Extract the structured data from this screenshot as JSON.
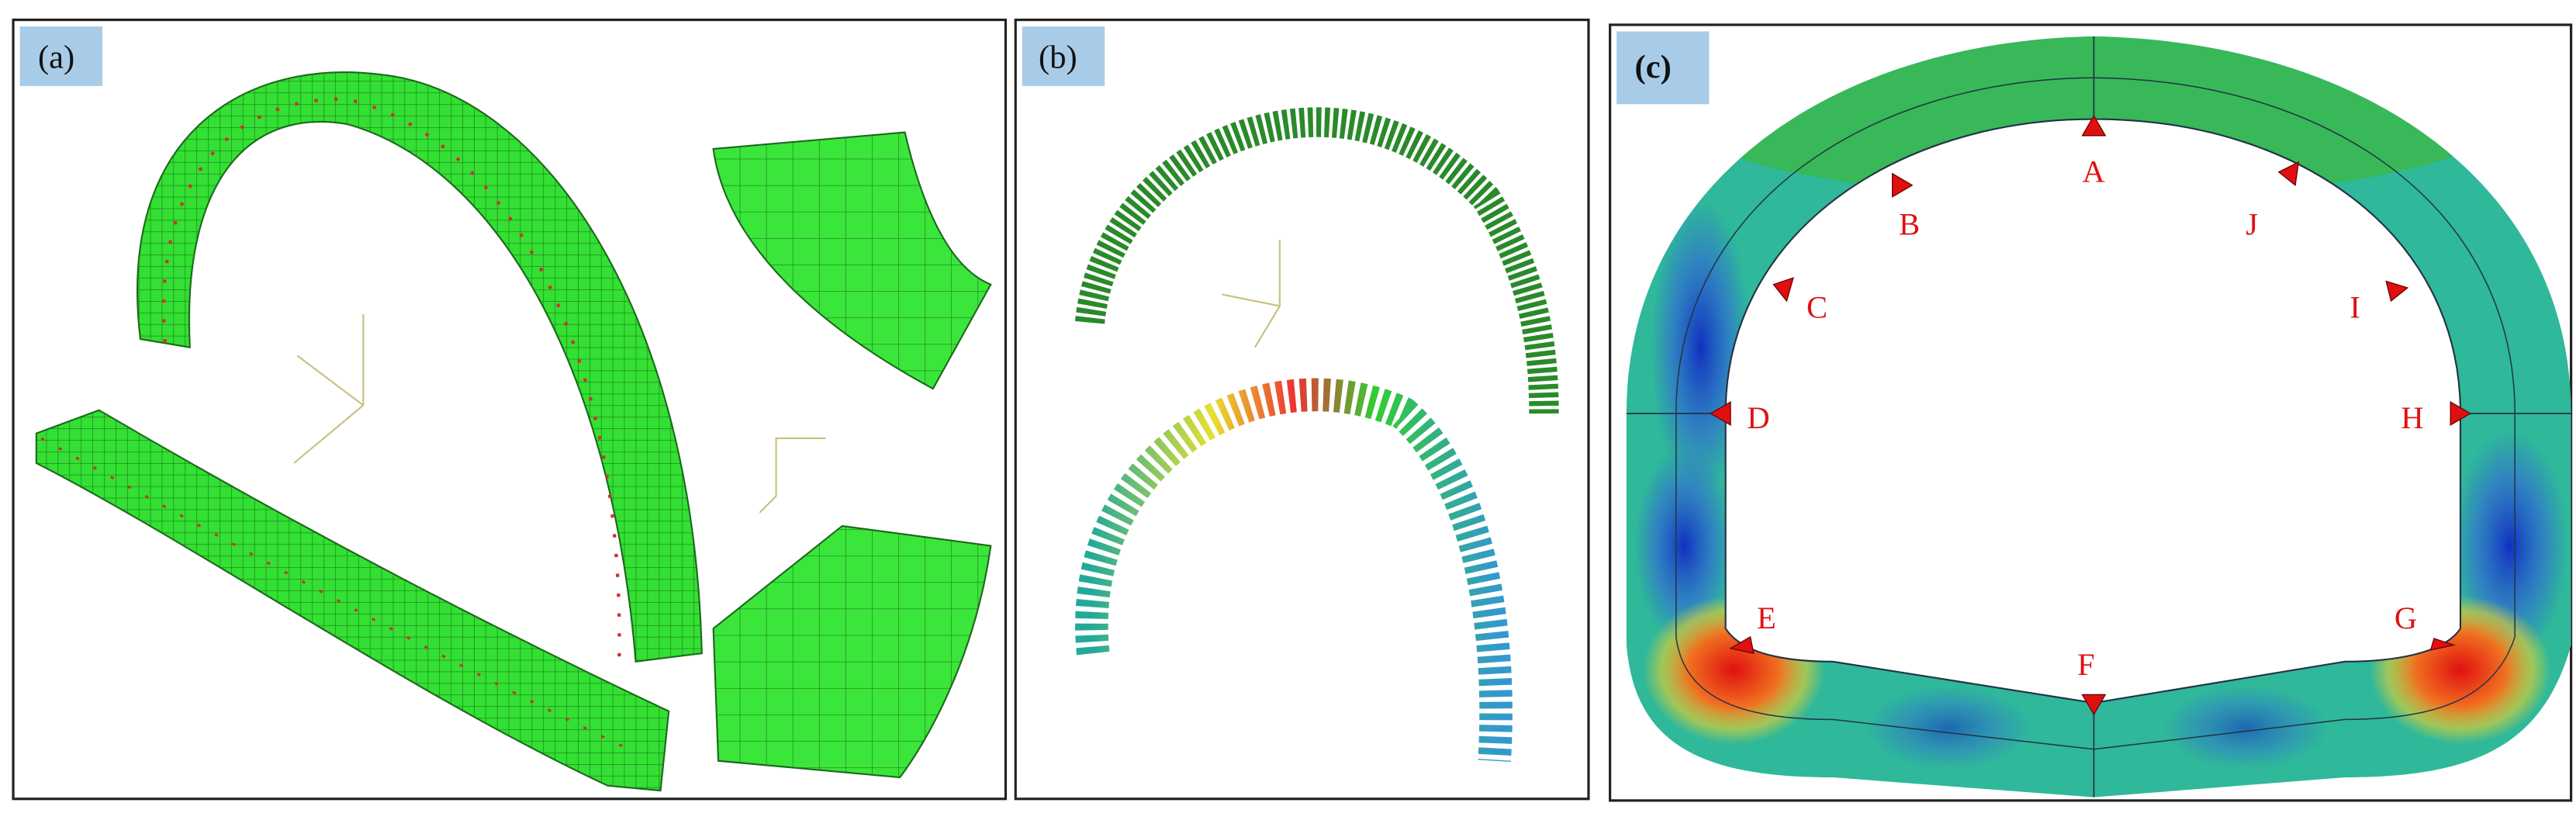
{
  "panels": [
    {
      "label": "(a)"
    },
    {
      "label": "(b)"
    },
    {
      "label": "(c)",
      "points": [
        "A",
        "B",
        "C",
        "D",
        "E",
        "F",
        "G",
        "H",
        "I",
        "J"
      ]
    }
  ]
}
